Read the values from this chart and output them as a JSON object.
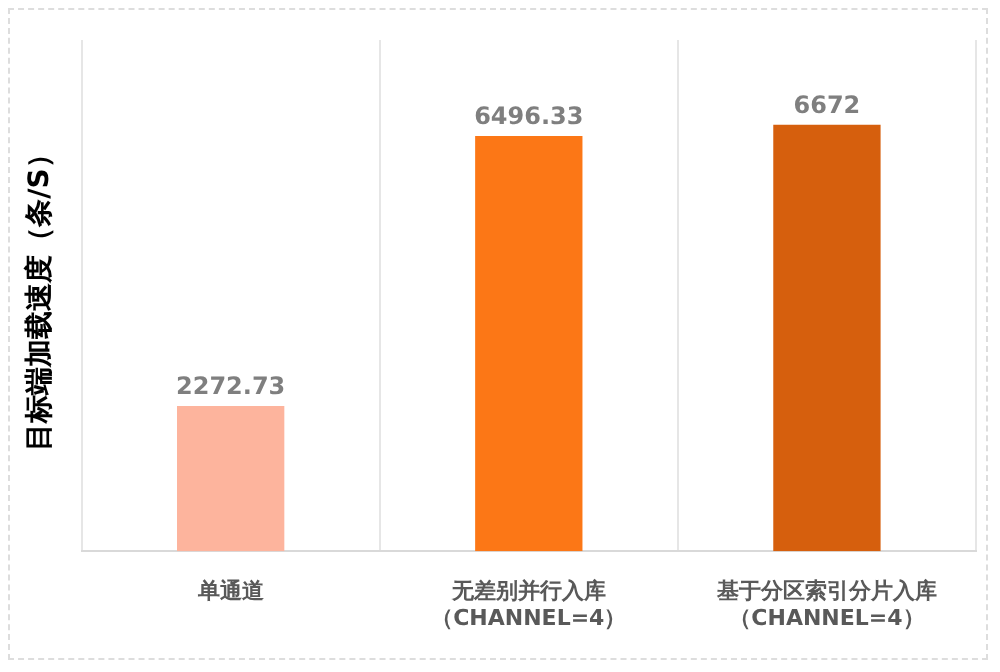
{
  "chart_data": {
    "type": "bar",
    "ylabel": "目标端加载速度（条/S）",
    "categories": [
      "单通道",
      "无差别并行入库（CHANNEL=4）",
      "基于分区索引分片入库（CHANNEL=4）"
    ],
    "values": [
      2272.73,
      6496.33,
      6672
    ],
    "colors": [
      "#fdb49d",
      "#fc7716",
      "#d65f0d"
    ],
    "ylim": [
      0,
      8000
    ],
    "grid": "x",
    "legend": false,
    "tick_labels": "x",
    "data_labels": true
  }
}
